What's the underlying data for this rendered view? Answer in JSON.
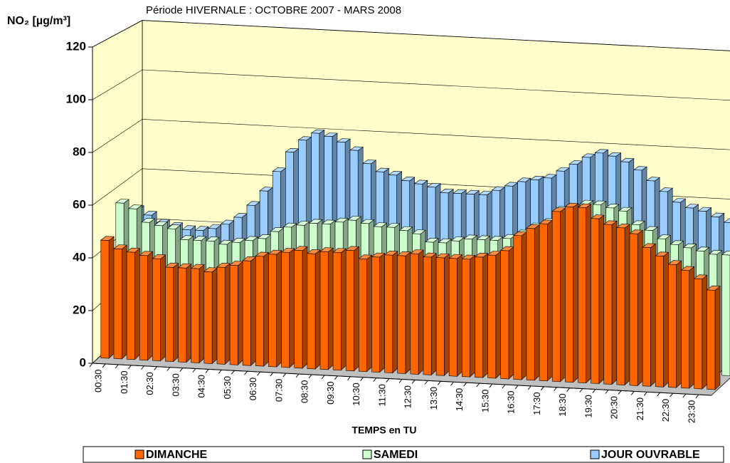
{
  "chart_data": {
    "type": "bar3d",
    "title": "Période HIVERNALE : OCTOBRE 2007 - MARS 2008",
    "y_label": "NO₂  [µg/m³]",
    "x_label": "TEMPS en TU",
    "categories": [
      "00:30",
      null,
      "01:30",
      null,
      "02:30",
      null,
      "03:30",
      null,
      "04:30",
      null,
      "05:30",
      null,
      "06:30",
      null,
      "07:30",
      null,
      "08:30",
      null,
      "09:30",
      null,
      "10:30",
      null,
      "11:30",
      null,
      "12:30",
      null,
      "13:30",
      null,
      "14:30",
      null,
      "15:30",
      null,
      "16:30",
      null,
      "17:30",
      null,
      "18:30",
      null,
      "19:30",
      null,
      "20:30",
      null,
      "21:30",
      null,
      "22:30",
      null,
      "23:30",
      null
    ],
    "series": [
      {
        "name": "DIMANCHE",
        "color": "#ff6600",
        "values": [
          45,
          42,
          41,
          40,
          39,
          36,
          36,
          36,
          35,
          37,
          38,
          40,
          42,
          43,
          44,
          45,
          44,
          45,
          45,
          46,
          43,
          44,
          45,
          45,
          46,
          45,
          45,
          45,
          45,
          46,
          47,
          49,
          55,
          58,
          60,
          65,
          67,
          67,
          63,
          61,
          60,
          58,
          53,
          50,
          47,
          45,
          42,
          38
        ]
      },
      {
        "name": "SAMEDI",
        "color": "#ccffcc",
        "values": [
          55,
          53,
          48,
          47,
          46,
          42,
          42,
          42,
          41,
          42,
          43,
          44,
          47,
          49,
          50,
          51,
          51,
          52,
          53,
          52,
          51,
          51,
          50,
          49,
          46,
          46,
          47,
          48,
          48,
          48,
          49,
          51,
          54,
          56,
          61,
          62,
          64,
          64,
          63,
          62,
          57,
          55,
          52,
          50,
          49,
          48,
          47,
          47
        ]
      },
      {
        "name": "JOUR OUVRABLE",
        "color": "#99ccff",
        "values": [
          48,
          46,
          43,
          42,
          41,
          41,
          42,
          44,
          47,
          52,
          58,
          66,
          74,
          79,
          82,
          81,
          79,
          76,
          71,
          68,
          67,
          65,
          64,
          63,
          61,
          61,
          61,
          61,
          63,
          65,
          67,
          68,
          69,
          72,
          75,
          78,
          80,
          79,
          77,
          74,
          70,
          66,
          62,
          60,
          59,
          57,
          55,
          52
        ]
      }
    ],
    "ylim": [
      0,
      120
    ],
    "yticks": [
      0,
      20,
      40,
      60,
      80,
      100,
      120
    ],
    "grid": true,
    "wall_color": "#ffffcc"
  }
}
